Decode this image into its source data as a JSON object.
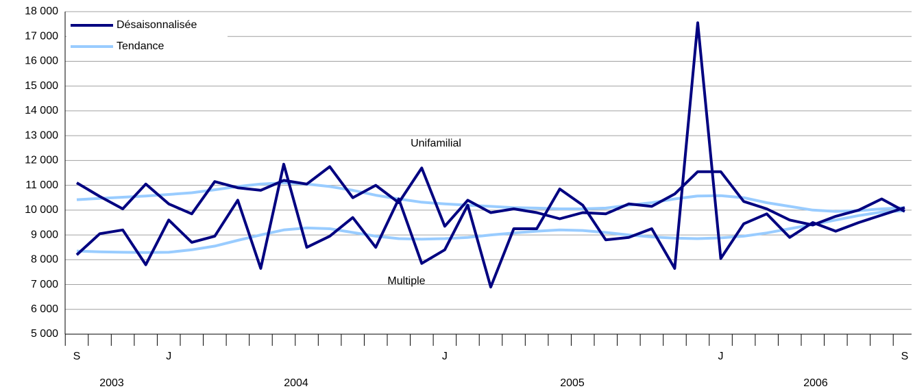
{
  "chart_data": {
    "type": "line",
    "categories": [
      "S",
      null,
      null,
      null,
      "J",
      null,
      null,
      null,
      null,
      null,
      null,
      null,
      null,
      null,
      null,
      null,
      "J",
      null,
      null,
      null,
      null,
      null,
      null,
      null,
      null,
      null,
      null,
      null,
      "J",
      null,
      null,
      null,
      null,
      null,
      null,
      null,
      "S"
    ],
    "year_labels": [
      "2003",
      "2004",
      "2005",
      "2006"
    ],
    "annotations": [
      "Unifamilial",
      "Multiple"
    ],
    "series": [
      {
        "name": "Désaisonnalisée",
        "color": "#000080",
        "lines": [
          [
            11100,
            10550,
            10050,
            11050,
            10250,
            9850,
            11150,
            10900,
            10800,
            11200,
            11050,
            11750,
            10500,
            11000,
            10300,
            11700,
            9350,
            10400,
            9900,
            10050,
            9900,
            9650,
            9900,
            9850,
            10250,
            10150,
            10650,
            11550,
            11550,
            10350,
            10050,
            9600,
            9400,
            9750,
            10000,
            10450,
            9950
          ],
          [
            8200,
            9050,
            9200,
            7800,
            9600,
            8700,
            8950,
            10400,
            7650,
            11850,
            8500,
            8950,
            9700,
            8500,
            10450,
            7850,
            8400,
            10200,
            6900,
            9250,
            9250,
            10850,
            10200,
            8800,
            8900,
            9250,
            7650,
            17550,
            8050,
            9450,
            9850,
            8900,
            9500,
            9150,
            9500,
            9800,
            10100
          ]
        ]
      },
      {
        "name": "Tendance",
        "color": "#99ccff",
        "lines": [
          [
            10420,
            10470,
            10520,
            10570,
            10630,
            10700,
            10820,
            10950,
            11050,
            11100,
            11050,
            10950,
            10800,
            10600,
            10450,
            10320,
            10250,
            10200,
            10150,
            10100,
            10080,
            10050,
            10050,
            10080,
            10200,
            10300,
            10450,
            10570,
            10580,
            10500,
            10300,
            10150,
            10000,
            9950,
            9980,
            10050,
            10100
          ],
          [
            8350,
            8320,
            8300,
            8290,
            8300,
            8400,
            8550,
            8780,
            9000,
            9200,
            9280,
            9250,
            9100,
            8950,
            8850,
            8830,
            8850,
            8900,
            9000,
            9080,
            9150,
            9200,
            9180,
            9100,
            9000,
            8920,
            8870,
            8850,
            8880,
            8950,
            9080,
            9250,
            9420,
            9600,
            9780,
            9920,
            9980
          ]
        ]
      }
    ],
    "ylim": [
      5000,
      18000
    ],
    "yticks": [
      {
        "value": 5000,
        "label": "5 000"
      },
      {
        "value": 6000,
        "label": "6 000"
      },
      {
        "value": 7000,
        "label": "7 000"
      },
      {
        "value": 8000,
        "label": "8 000"
      },
      {
        "value": 9000,
        "label": "9 000"
      },
      {
        "value": 10000,
        "label": "10 000"
      },
      {
        "value": 11000,
        "label": "11 000"
      },
      {
        "value": 12000,
        "label": "12 000"
      },
      {
        "value": 13000,
        "label": "13 000"
      },
      {
        "value": 14000,
        "label": "14 000"
      },
      {
        "value": 15000,
        "label": "15 000"
      },
      {
        "value": 16000,
        "label": "16 000"
      },
      {
        "value": 17000,
        "label": "17 000"
      },
      {
        "value": 18000,
        "label": "18 000"
      }
    ],
    "grid": true
  }
}
